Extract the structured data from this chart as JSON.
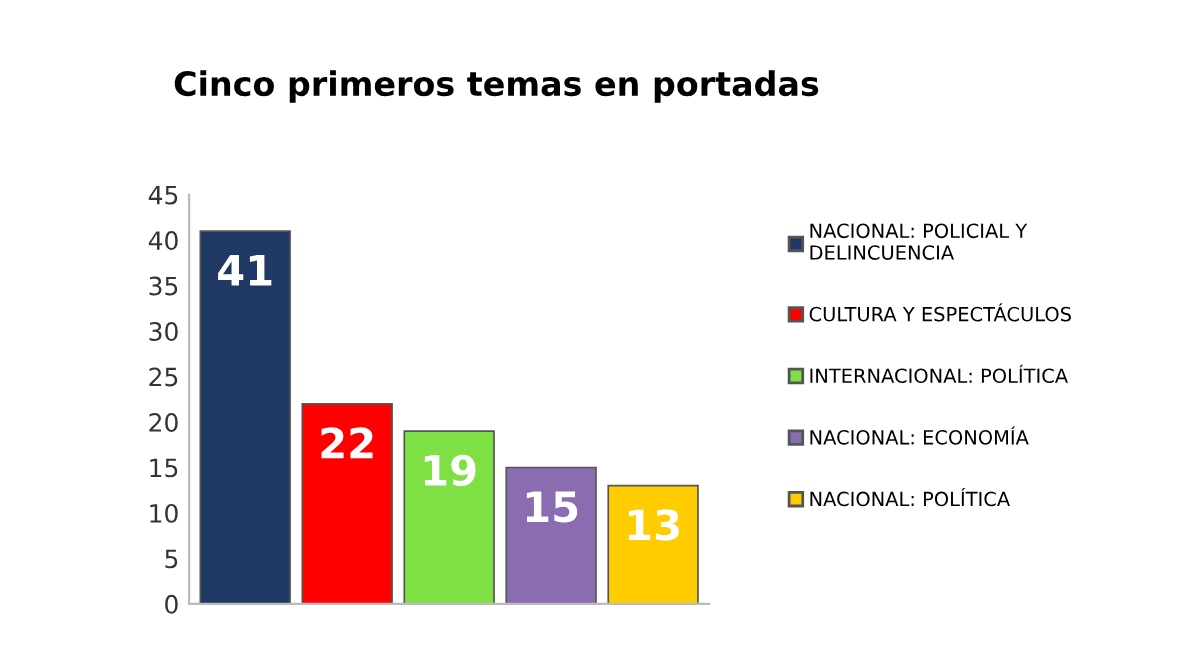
{
  "chart_data": {
    "type": "bar",
    "title": "Cinco primeros temas en portadas",
    "categories": [
      null,
      null,
      null,
      null,
      null
    ],
    "series": [
      {
        "name": "NACIONAL: POLICIAL Y DELINCUENCIA",
        "color": "#1f3864",
        "values": [
          41,
          null,
          null,
          null,
          null
        ]
      },
      {
        "name": "CULTURA Y ESPECTÁCULOS",
        "color": "#ff0000",
        "values": [
          null,
          22,
          null,
          null,
          null
        ]
      },
      {
        "name": "INTERNACIONAL: POLÍTICA",
        "color": "#7ee043",
        "values": [
          null,
          null,
          19,
          null,
          null
        ]
      },
      {
        "name": "NACIONAL: ECONOMÍA",
        "color": "#8a6db0",
        "values": [
          null,
          null,
          null,
          15,
          null
        ]
      },
      {
        "name": "NACIONAL: POLÍTICA",
        "color": "#ffcc00",
        "values": [
          null,
          null,
          null,
          null,
          13
        ]
      }
    ],
    "ylim": [
      0,
      45
    ],
    "yticks": [
      0,
      5,
      10,
      15,
      20,
      25,
      30,
      35,
      40,
      45
    ],
    "data_labels": true,
    "grid": false,
    "legend": "right"
  }
}
